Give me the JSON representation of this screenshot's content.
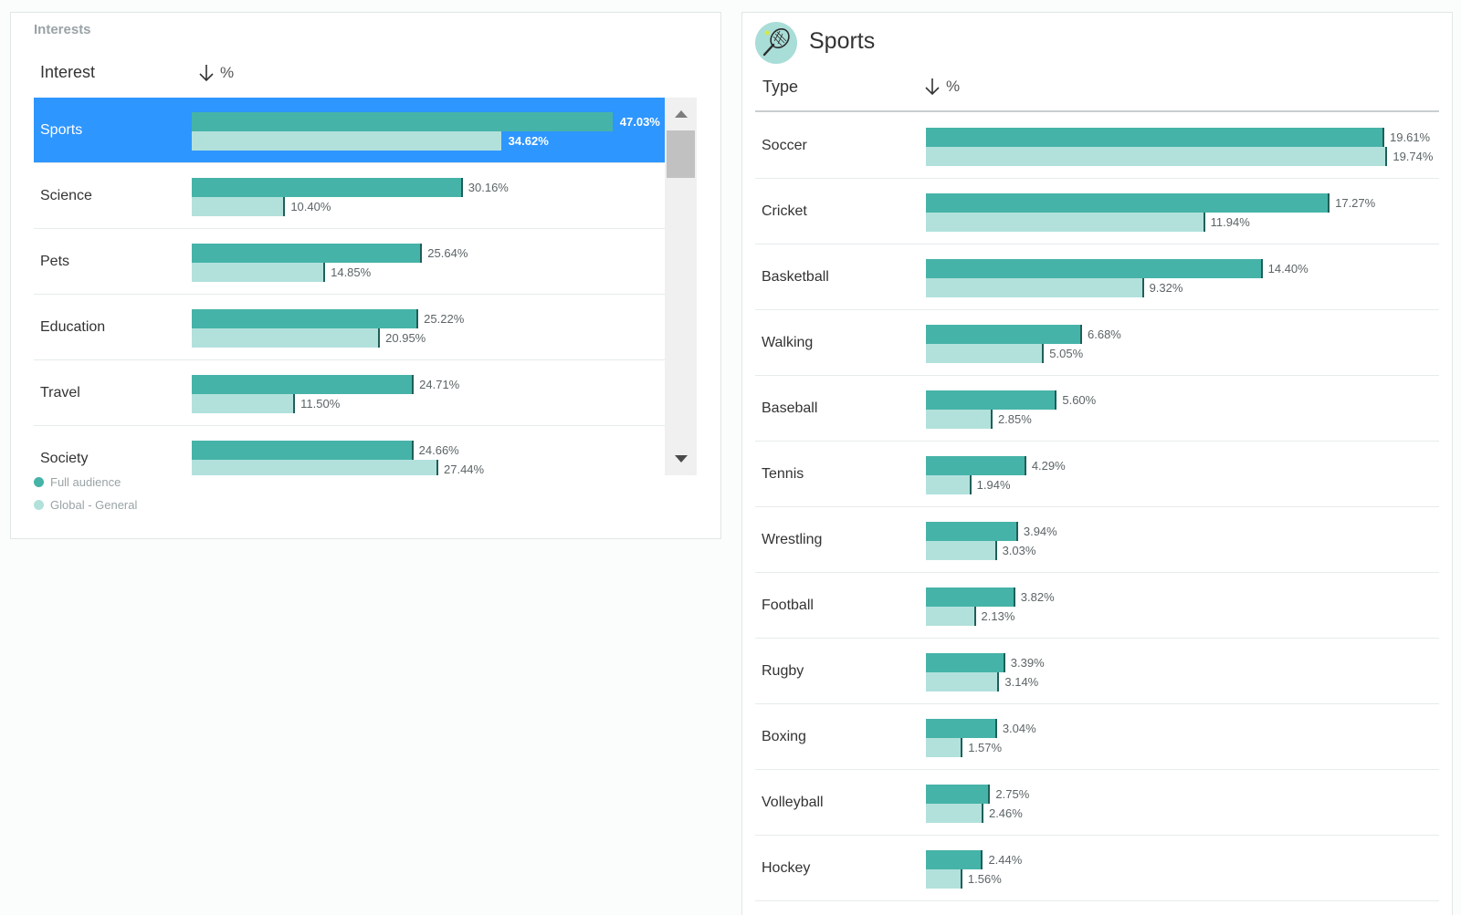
{
  "interests": {
    "title": "Interests",
    "col_interest": "Interest",
    "col_percent": "%",
    "rows": [
      {
        "label": "Sports",
        "full": 47.03,
        "global": 34.62,
        "full_text": "47.03%",
        "global_text": "34.62%",
        "selected": true
      },
      {
        "label": "Science",
        "full": 30.16,
        "global": 10.4,
        "full_text": "30.16%",
        "global_text": "10.40%",
        "selected": false
      },
      {
        "label": "Pets",
        "full": 25.64,
        "global": 14.85,
        "full_text": "25.64%",
        "global_text": "14.85%",
        "selected": false
      },
      {
        "label": "Education",
        "full": 25.22,
        "global": 20.95,
        "full_text": "25.22%",
        "global_text": "20.95%",
        "selected": false
      },
      {
        "label": "Travel",
        "full": 24.71,
        "global": 11.5,
        "full_text": "24.71%",
        "global_text": "11.50%",
        "selected": false
      },
      {
        "label": "Society",
        "full": 24.66,
        "global": 27.44,
        "full_text": "24.66%",
        "global_text": "27.44%",
        "selected": false
      }
    ],
    "legend": [
      {
        "label": "Full audience",
        "color": "#46b3a8"
      },
      {
        "label": "Global - General",
        "color": "#b2e1dc"
      }
    ]
  },
  "sports": {
    "title": "Sports",
    "icon": "tennis-racket-icon",
    "col_type": "Type",
    "col_percent": "%",
    "rows": [
      {
        "label": "Soccer",
        "full": 19.61,
        "global": 19.74,
        "full_text": "19.61%",
        "global_text": "19.74%"
      },
      {
        "label": "Cricket",
        "full": 17.27,
        "global": 11.94,
        "full_text": "17.27%",
        "global_text": "11.94%"
      },
      {
        "label": "Basketball",
        "full": 14.4,
        "global": 9.32,
        "full_text": "14.40%",
        "global_text": "9.32%"
      },
      {
        "label": "Walking",
        "full": 6.68,
        "global": 5.05,
        "full_text": "6.68%",
        "global_text": "5.05%"
      },
      {
        "label": "Baseball",
        "full": 5.6,
        "global": 2.85,
        "full_text": "5.60%",
        "global_text": "2.85%"
      },
      {
        "label": "Tennis",
        "full": 4.29,
        "global": 1.94,
        "full_text": "4.29%",
        "global_text": "1.94%"
      },
      {
        "label": "Wrestling",
        "full": 3.94,
        "global": 3.03,
        "full_text": "3.94%",
        "global_text": "3.03%"
      },
      {
        "label": "Football",
        "full": 3.82,
        "global": 2.13,
        "full_text": "3.82%",
        "global_text": "2.13%"
      },
      {
        "label": "Rugby",
        "full": 3.39,
        "global": 3.14,
        "full_text": "3.39%",
        "global_text": "3.14%"
      },
      {
        "label": "Boxing",
        "full": 3.04,
        "global": 1.57,
        "full_text": "3.04%",
        "global_text": "1.57%"
      },
      {
        "label": "Volleyball",
        "full": 2.75,
        "global": 2.46,
        "full_text": "2.75%",
        "global_text": "2.46%"
      },
      {
        "label": "Hockey",
        "full": 2.44,
        "global": 1.56,
        "full_text": "2.44%",
        "global_text": "1.56%"
      }
    ]
  },
  "colors": {
    "full_audience": "#46b3a8",
    "global_general": "#b2e1dc",
    "selected_row": "#2e96ff"
  }
}
